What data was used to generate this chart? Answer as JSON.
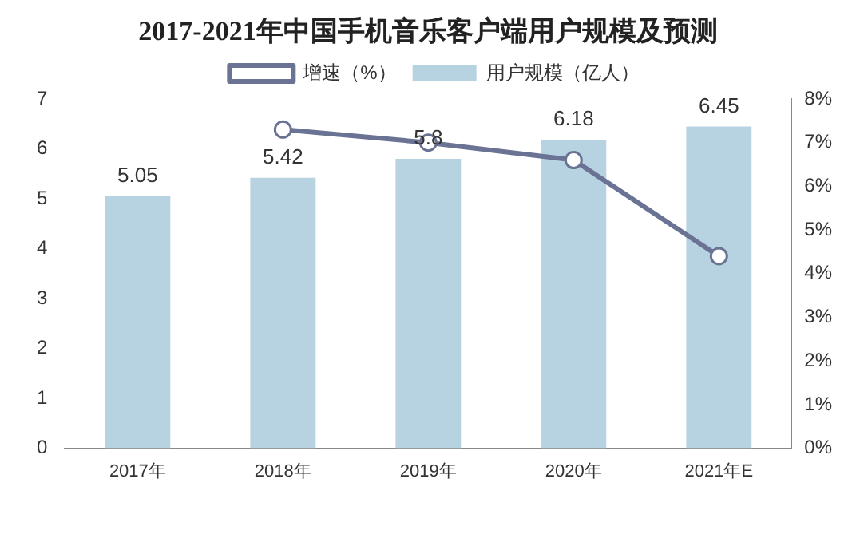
{
  "chart_data": {
    "type": "bar",
    "title": "2017-2021年中国手机音乐客户端用户规模及预测",
    "categories": [
      "2017年",
      "2018年",
      "2019年",
      "2020年",
      "2021年E"
    ],
    "series": [
      {
        "name": "用户规模（亿人）",
        "color": "#b7d3e2",
        "values": [
          5.05,
          5.42,
          5.8,
          6.18,
          6.45
        ],
        "value_labels": [
          "5.05",
          "5.42",
          "5.8",
          "6.18",
          "6.45"
        ]
      },
      {
        "name": "增速（%）",
        "type": "line",
        "axis": "y2",
        "color": "#6b7394",
        "values": [
          null,
          7.3,
          7.0,
          6.6,
          4.4
        ]
      }
    ],
    "ylim": [
      0,
      7
    ],
    "yticks": [
      0,
      1,
      2,
      3,
      4,
      5,
      6,
      7
    ],
    "y2lim": [
      0,
      8
    ],
    "y2ticks": [
      {
        "value": 0,
        "label": "0%"
      },
      {
        "value": 1,
        "label": "1%"
      },
      {
        "value": 2,
        "label": "2%"
      },
      {
        "value": 3,
        "label": "3%"
      },
      {
        "value": 4,
        "label": "4%"
      },
      {
        "value": 5,
        "label": "5%"
      },
      {
        "value": 6,
        "label": "6%"
      },
      {
        "value": 7,
        "label": "7%"
      },
      {
        "value": 8,
        "label": "8%"
      }
    ],
    "legend": "top",
    "grid": false,
    "marker": "circle",
    "line_style": "solid"
  }
}
